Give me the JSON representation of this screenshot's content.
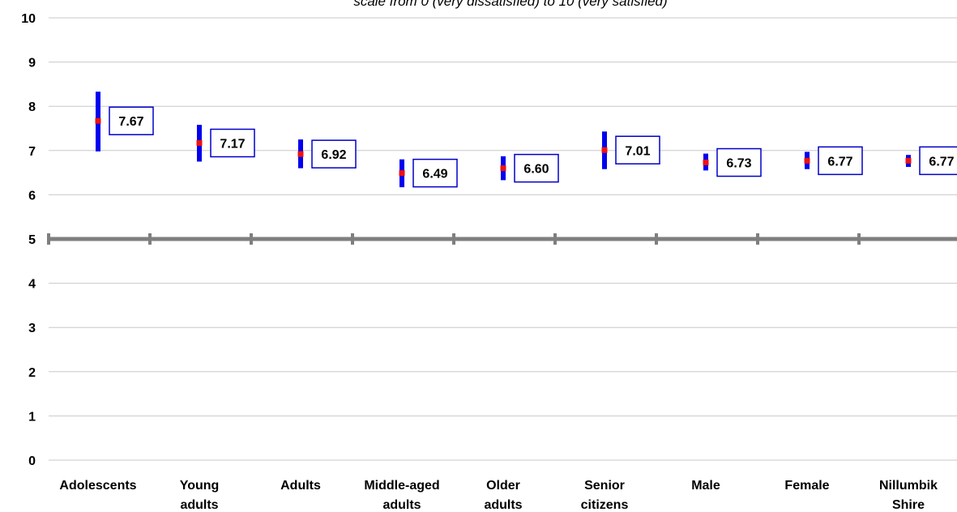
{
  "chart_data": {
    "type": "error-bar",
    "subtitle": "scale from 0 (very dissatisfied) to 10 (very satisfied)",
    "categories": [
      [
        "Adolescents"
      ],
      [
        "Young",
        "adults"
      ],
      [
        "Adults"
      ],
      [
        "Middle-aged",
        "adults"
      ],
      [
        "Older",
        "adults"
      ],
      [
        "Senior",
        "citizens"
      ],
      [
        "Male"
      ],
      [
        "Female"
      ],
      [
        "Nillumbik",
        "Shire"
      ]
    ],
    "values": [
      7.67,
      7.17,
      6.92,
      6.49,
      6.6,
      7.01,
      6.73,
      6.77,
      6.77
    ],
    "value_labels": [
      "7.67",
      "7.17",
      "6.92",
      "6.49",
      "6.60",
      "7.01",
      "6.73",
      "6.77",
      "6.77"
    ],
    "lower": [
      6.98,
      6.75,
      6.6,
      6.17,
      6.33,
      6.58,
      6.55,
      6.58,
      6.63
    ],
    "upper": [
      8.33,
      7.58,
      7.25,
      6.8,
      6.87,
      7.43,
      6.93,
      6.97,
      6.9
    ],
    "ylim": [
      0,
      10
    ],
    "yticks": [
      "0",
      "1",
      "2",
      "3",
      "4",
      "5",
      "6",
      "7",
      "8",
      "9",
      "10"
    ],
    "reference_line": 5,
    "grid": true,
    "colors": {
      "bar": "#0000ee",
      "point": "#ee1111",
      "label_border": "#0000cc",
      "grid": "#c8c8c8",
      "reference": "#7f7f7f"
    }
  }
}
